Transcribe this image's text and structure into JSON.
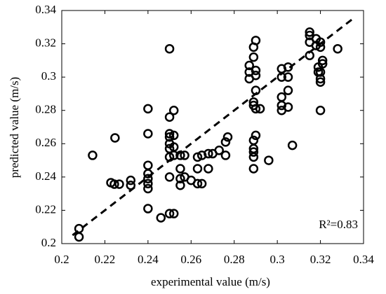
{
  "chart_data": {
    "type": "scatter",
    "x_label": "experimental value (m/s)",
    "y_label": "predicted value (m/s)",
    "annotation": "R²=0.83",
    "xlim": [
      0.2,
      0.34
    ],
    "xticks": [
      0.2,
      0.22,
      0.24,
      0.26,
      0.28,
      0.3,
      0.32,
      0.34
    ],
    "ylim": [
      0.2,
      0.34
    ],
    "yticks": [
      0.2,
      0.22,
      0.24,
      0.26,
      0.28,
      0.3,
      0.32,
      0.34
    ],
    "color": "#000000",
    "reference_line": {
      "x": [
        0.205,
        0.335
      ],
      "y": [
        0.205,
        0.335
      ]
    },
    "x": [
      0.2143,
      0.208,
      0.208,
      0.2228,
      0.2244,
      0.2247,
      0.2267,
      0.232,
      0.232,
      0.24,
      0.24,
      0.24,
      0.24,
      0.24,
      0.24,
      0.24,
      0.24,
      0.246,
      0.25,
      0.25,
      0.25,
      0.25,
      0.25,
      0.25,
      0.25,
      0.25,
      0.25,
      0.252,
      0.252,
      0.252,
      0.252,
      0.252,
      0.255,
      0.255,
      0.255,
      0.255,
      0.257,
      0.257,
      0.26,
      0.263,
      0.263,
      0.263,
      0.265,
      0.265,
      0.268,
      0.268,
      0.27,
      0.273,
      0.276,
      0.276,
      0.277,
      0.287,
      0.287,
      0.287,
      0.289,
      0.289,
      0.289,
      0.289,
      0.289,
      0.289,
      0.289,
      0.289,
      0.289,
      0.29,
      0.29,
      0.29,
      0.29,
      0.29,
      0.29,
      0.292,
      0.296,
      0.302,
      0.302,
      0.302,
      0.302,
      0.302,
      0.305,
      0.305,
      0.305,
      0.305,
      0.307,
      0.315,
      0.315,
      0.315,
      0.315,
      0.318,
      0.318,
      0.319,
      0.319,
      0.32,
      0.32,
      0.32,
      0.32,
      0.32,
      0.32,
      0.321,
      0.321,
      0.328
    ],
    "y": [
      0.253,
      0.209,
      0.204,
      0.2366,
      0.2357,
      0.2635,
      0.2357,
      0.238,
      0.235,
      0.281,
      0.266,
      0.247,
      0.242,
      0.239,
      0.236,
      0.233,
      0.221,
      0.2155,
      0.317,
      0.276,
      0.266,
      0.264,
      0.26,
      0.257,
      0.252,
      0.24,
      0.218,
      0.28,
      0.265,
      0.258,
      0.253,
      0.218,
      0.253,
      0.245,
      0.239,
      0.235,
      0.253,
      0.24,
      0.238,
      0.252,
      0.245,
      0.236,
      0.236,
      0.253,
      0.254,
      0.245,
      0.254,
      0.256,
      0.261,
      0.253,
      0.264,
      0.307,
      0.303,
      0.299,
      0.318,
      0.312,
      0.285,
      0.283,
      0.262,
      0.257,
      0.255,
      0.252,
      0.245,
      0.322,
      0.304,
      0.301,
      0.292,
      0.281,
      0.265,
      0.281,
      0.25,
      0.305,
      0.3,
      0.288,
      0.283,
      0.28,
      0.306,
      0.3,
      0.292,
      0.282,
      0.259,
      0.327,
      0.325,
      0.321,
      0.313,
      0.323,
      0.319,
      0.306,
      0.303,
      0.321,
      0.318,
      0.303,
      0.299,
      0.297,
      0.28,
      0.31,
      0.308,
      0.317
    ]
  }
}
